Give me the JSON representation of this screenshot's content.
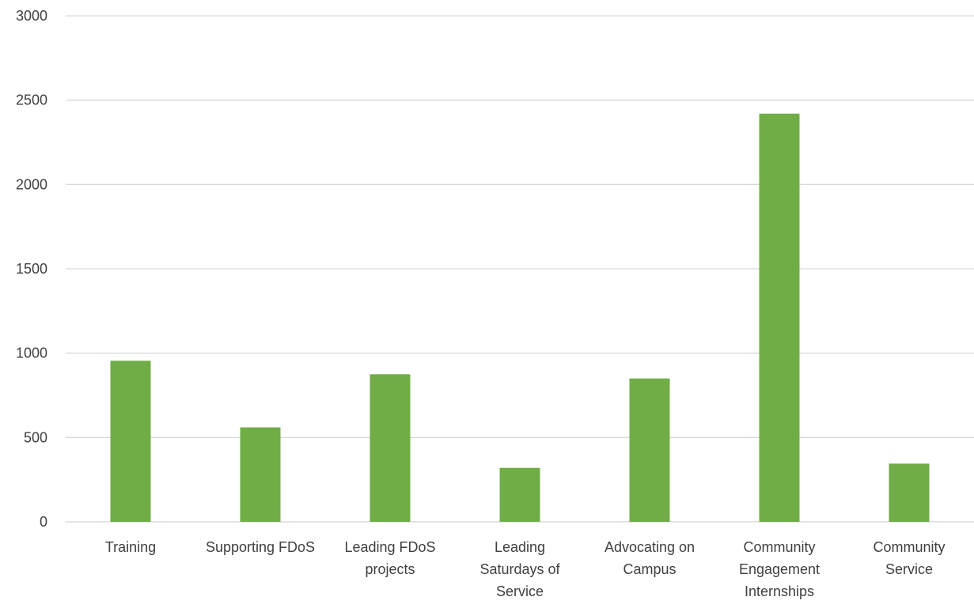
{
  "chart_data": {
    "type": "bar",
    "title": "",
    "xlabel": "",
    "ylabel": "",
    "categories": [
      [
        "Training"
      ],
      [
        "Supporting FDoS"
      ],
      [
        "Leading FDoS",
        "projects"
      ],
      [
        "Leading",
        "Saturdays of",
        "Service"
      ],
      [
        "Advocating on",
        "Campus"
      ],
      [
        "Community",
        "Engagement",
        "Internships"
      ],
      [
        "Community",
        "Service"
      ]
    ],
    "values": [
      955,
      560,
      875,
      320,
      850,
      2420,
      345
    ],
    "ylim": [
      0,
      3000
    ],
    "yticks": [
      "0",
      "500",
      "1000",
      "1500",
      "2000",
      "2500",
      "3000"
    ],
    "grid": true,
    "legend": "none",
    "colors": {
      "bar": "#70ad47",
      "grid": "#d9d9d9",
      "text": "#404040"
    }
  }
}
